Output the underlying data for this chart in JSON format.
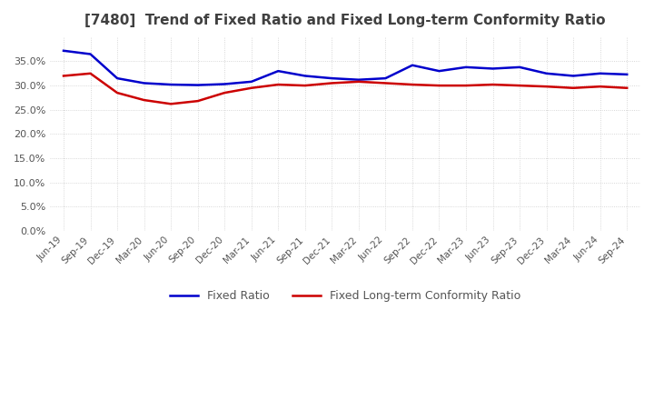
{
  "title": "[7480]  Trend of Fixed Ratio and Fixed Long-term Conformity Ratio",
  "x_labels": [
    "Jun-19",
    "Sep-19",
    "Dec-19",
    "Mar-20",
    "Jun-20",
    "Sep-20",
    "Dec-20",
    "Mar-21",
    "Jun-21",
    "Sep-21",
    "Dec-21",
    "Mar-22",
    "Jun-22",
    "Sep-22",
    "Dec-22",
    "Mar-23",
    "Jun-23",
    "Sep-23",
    "Dec-23",
    "Mar-24",
    "Jun-24",
    "Sep-24"
  ],
  "fixed_ratio": [
    37.2,
    36.5,
    31.5,
    30.5,
    30.2,
    30.1,
    30.3,
    30.8,
    33.0,
    32.0,
    31.5,
    31.2,
    31.5,
    34.2,
    33.0,
    33.8,
    33.5,
    33.8,
    32.5,
    32.0,
    32.5,
    32.3
  ],
  "fixed_lt_ratio": [
    32.0,
    32.5,
    28.5,
    27.0,
    26.2,
    26.8,
    28.5,
    29.5,
    30.2,
    30.0,
    30.5,
    30.8,
    30.5,
    30.2,
    30.0,
    30.0,
    30.2,
    30.0,
    29.8,
    29.5,
    29.8,
    29.5
  ],
  "fixed_ratio_color": "#0000cc",
  "fixed_lt_ratio_color": "#cc0000",
  "ylim": [
    0,
    40
  ],
  "yticks": [
    0,
    5,
    10,
    15,
    20,
    25,
    30,
    35
  ],
  "background_color": "#ffffff",
  "plot_bg_color": "#ffffff",
  "grid_color": "#cccccc",
  "title_color": "#404040",
  "legend_fixed": "Fixed Ratio",
  "legend_fixed_lt": "Fixed Long-term Conformity Ratio"
}
